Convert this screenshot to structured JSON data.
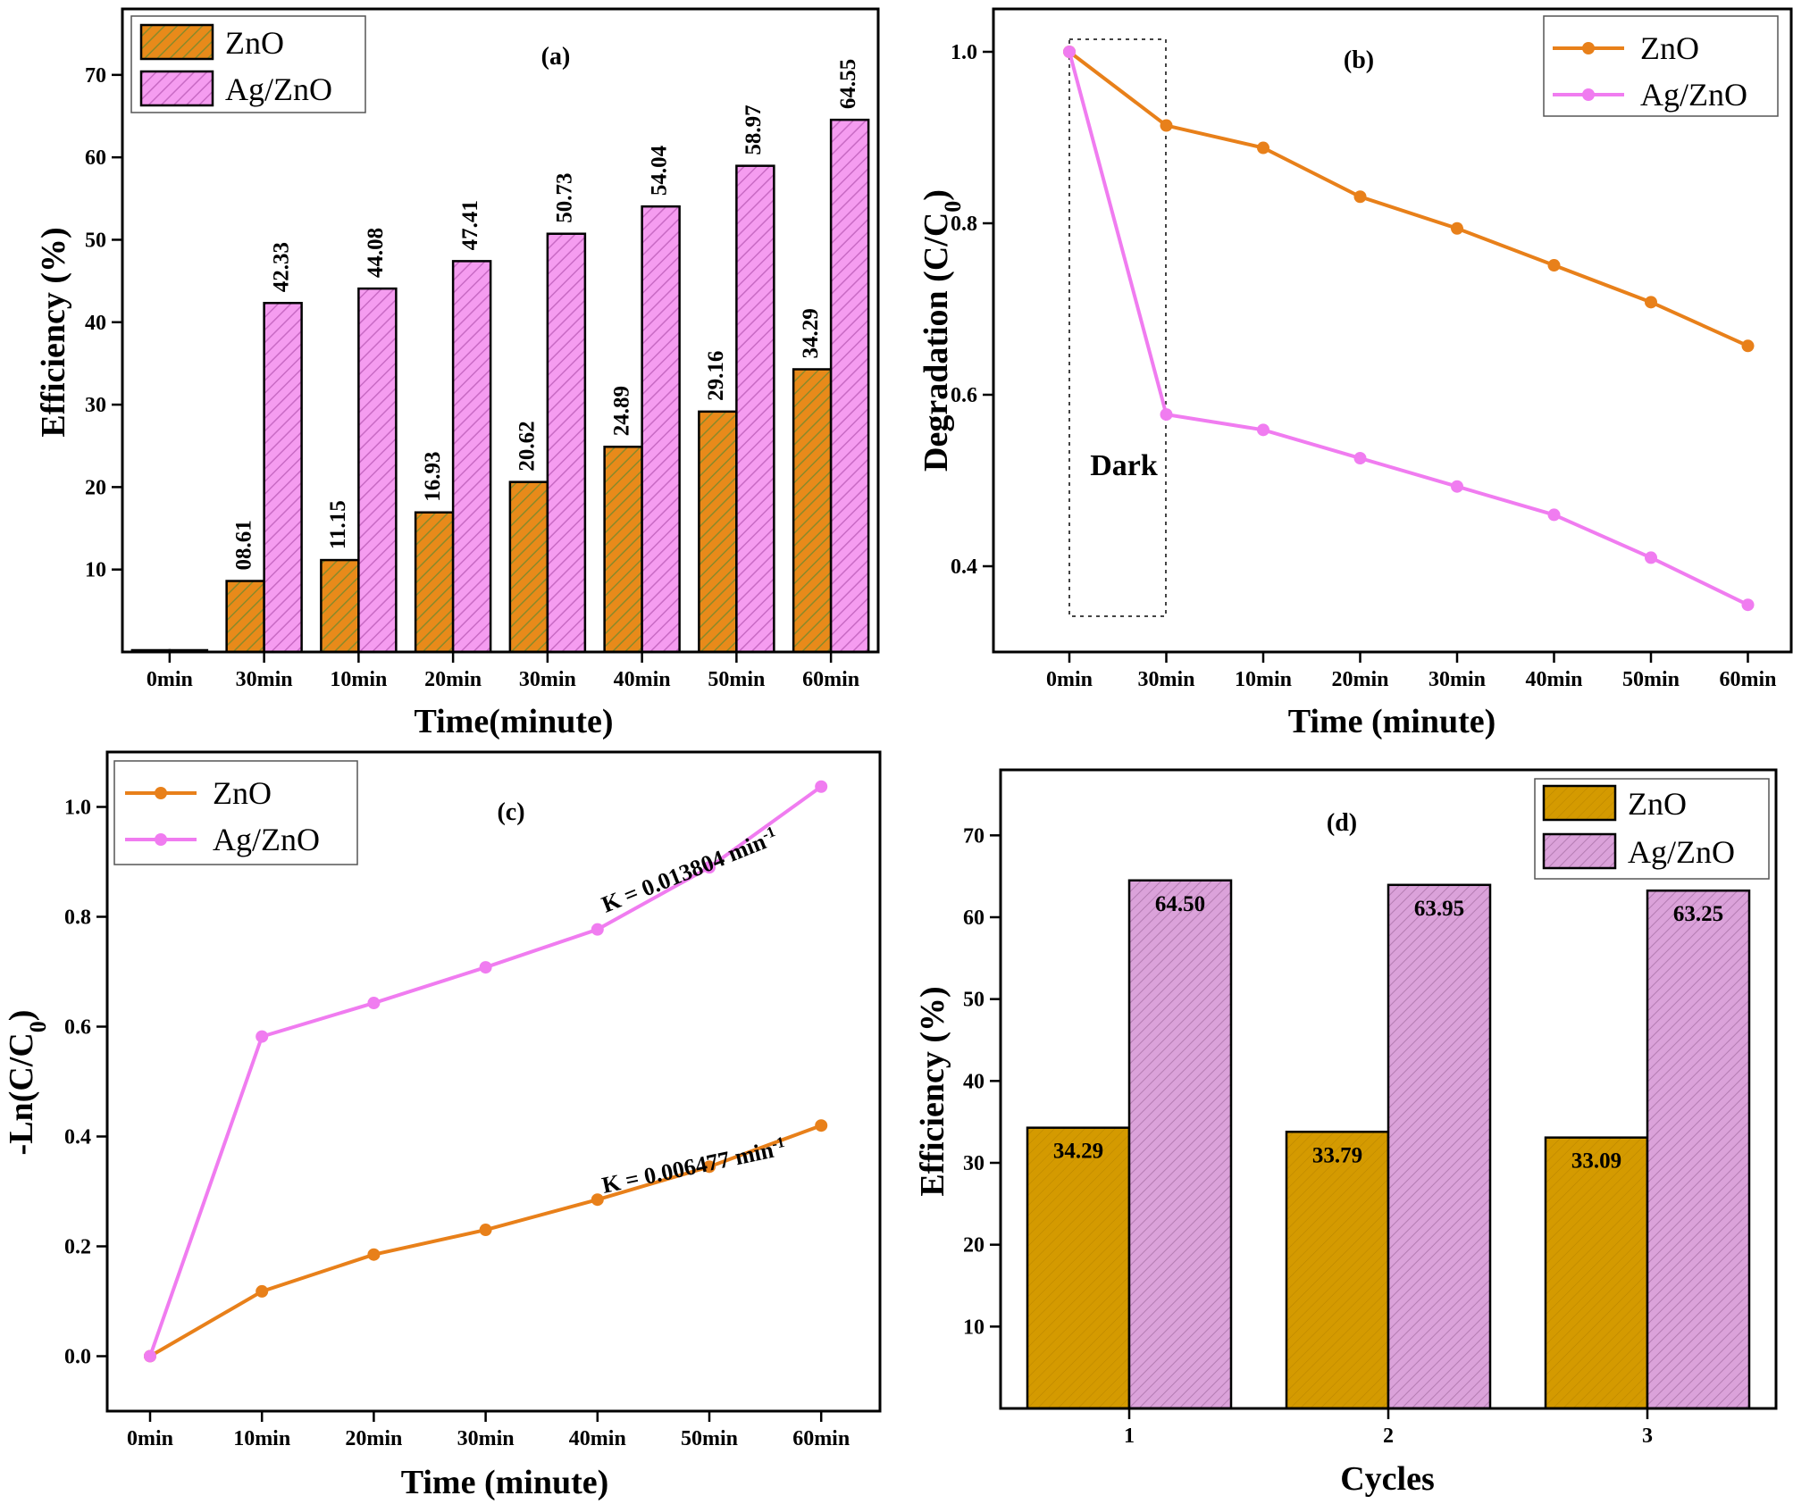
{
  "colors": {
    "zno_bar": "#e88a1a",
    "zno_bar_hatch": "#8a8a2a",
    "agzno_bar": "#f59cf0",
    "agzno_bar_hatch": "#c86ac4",
    "zno_line": "#e8801a",
    "agzno_line": "#f07cf0",
    "zno_bar_d": "#d49a00",
    "zno_bar_d_hatch": "#9a7000",
    "agzno_bar_d": "#d9a0d8",
    "agzno_bar_d_hatch": "#a870a8"
  },
  "chart_data": [
    {
      "id": "a",
      "type": "bar",
      "title": "(a)",
      "xlabel": "Time(minute)",
      "ylabel": "Efficiency (%)",
      "ylim": [
        0,
        78
      ],
      "yticks": [
        10,
        20,
        30,
        40,
        50,
        60,
        70
      ],
      "categories": [
        "0min",
        "30min",
        "10min",
        "20min",
        "30min",
        "40min",
        "50min",
        "60min"
      ],
      "series": [
        {
          "name": "ZnO",
          "values": [
            0,
            8.61,
            11.15,
            16.93,
            20.62,
            24.89,
            29.16,
            34.29
          ],
          "labels": [
            "",
            "08.61",
            "11.15",
            "16.93",
            "20.62",
            "24.89",
            "29.16",
            "34.29"
          ]
        },
        {
          "name": "Ag/ZnO",
          "values": [
            0,
            42.33,
            44.08,
            47.41,
            50.73,
            54.04,
            58.97,
            64.55
          ],
          "labels": [
            "",
            "42.33",
            "44.08",
            "47.41",
            "50.73",
            "54.04",
            "58.97",
            "64.55"
          ]
        }
      ],
      "legend": "top-left"
    },
    {
      "id": "b",
      "type": "line",
      "title": "(b)",
      "xlabel": "Time (minute)",
      "ylabel_main": "Degradation (C/C",
      "ylabel_sub": "0",
      "ylabel_end": ")",
      "ylim": [
        0.3,
        1.05
      ],
      "yticks": [
        0.4,
        0.6,
        0.8,
        1.0
      ],
      "ytick_labels": [
        "0.4",
        "0.6",
        "0.8",
        "1.0"
      ],
      "categories": [
        "0min",
        "30min",
        "10min",
        "20min",
        "30min",
        "40min",
        "50min",
        "60min"
      ],
      "series": [
        {
          "name": "ZnO",
          "values": [
            1.0,
            0.914,
            0.888,
            0.831,
            0.794,
            0.751,
            0.708,
            0.657
          ]
        },
        {
          "name": "Ag/ZnO",
          "values": [
            1.0,
            0.577,
            0.559,
            0.526,
            0.493,
            0.46,
            0.41,
            0.355
          ]
        }
      ],
      "annotation": "Dark",
      "legend": "top-right"
    },
    {
      "id": "c",
      "type": "line",
      "title": "(c)",
      "xlabel": "Time (minute)",
      "ylabel_main": "-Ln(C/C",
      "ylabel_sub": "0",
      "ylabel_end": ")",
      "ylim": [
        -0.1,
        1.1
      ],
      "yticks": [
        0.0,
        0.2,
        0.4,
        0.6,
        0.8,
        1.0
      ],
      "ytick_labels": [
        "0.0",
        "0.2",
        "0.4",
        "0.6",
        "0.8",
        "1.0"
      ],
      "categories": [
        "0min",
        "10min",
        "20min",
        "30min",
        "40min",
        "50min",
        "60min"
      ],
      "series": [
        {
          "name": "ZnO",
          "values": [
            0.0,
            0.118,
            0.185,
            0.23,
            0.285,
            0.345,
            0.42
          ]
        },
        {
          "name": "Ag/ZnO",
          "values": [
            0.0,
            0.582,
            0.643,
            0.708,
            0.777,
            0.89,
            1.037
          ]
        }
      ],
      "annotations": [
        {
          "text": "K = 0.013804 min",
          "sup": "-1"
        },
        {
          "text": "K = 0.006477 min",
          "sup": "-1"
        }
      ],
      "legend": "top-left"
    },
    {
      "id": "d",
      "type": "bar",
      "title": "(d)",
      "xlabel": "Cycles",
      "ylabel": "Efficiency (%)",
      "ylim": [
        0,
        78
      ],
      "yticks": [
        10,
        20,
        30,
        40,
        50,
        60,
        70
      ],
      "categories": [
        "1",
        "2",
        "3"
      ],
      "series": [
        {
          "name": "ZnO",
          "values": [
            34.29,
            33.79,
            33.09
          ],
          "labels": [
            "34.29",
            "33.79",
            "33.09"
          ]
        },
        {
          "name": "Ag/ZnO",
          "values": [
            64.5,
            63.95,
            63.25
          ],
          "labels": [
            "64.50",
            "63.95",
            "63.25"
          ]
        }
      ],
      "legend": "top-right"
    }
  ]
}
